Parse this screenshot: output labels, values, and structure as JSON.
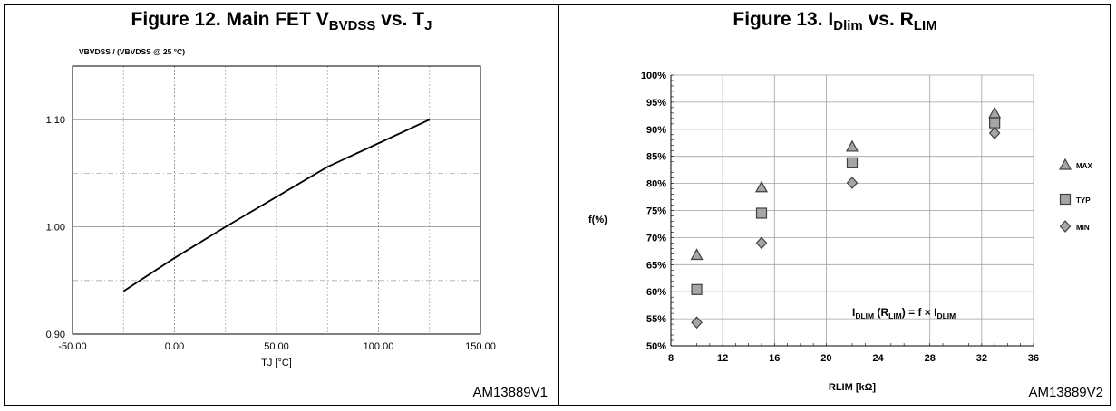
{
  "figure12": {
    "title_main": "Figure 12. Main FET V",
    "title_sub1": "BVDSS",
    "title_mid": " vs. T",
    "title_sub2": "J",
    "code": "AM13889V1",
    "chart_data": {
      "type": "line",
      "ylabel": "VBVDSS / (VBVDSS @ 25 °C)",
      "xlabel": "TJ [°C]",
      "xlim": [
        -50,
        150
      ],
      "ylim": [
        0.9,
        1.15
      ],
      "x_ticks": [
        -50,
        0,
        50,
        100,
        150
      ],
      "x_tick_labels": [
        "-50.00",
        "0.00",
        "50.00",
        "100.00",
        "150.00"
      ],
      "y_ticks": [
        0.9,
        1.0,
        1.1
      ],
      "y_tick_labels": [
        "0.90",
        "1.00",
        "1.10"
      ],
      "grid": true,
      "series": [
        {
          "x": [
            -25,
            0,
            25,
            50,
            75,
            100,
            125
          ],
          "y": [
            0.94,
            0.971,
            1.0,
            1.028,
            1.056,
            1.078,
            1.1
          ],
          "color": "#000000"
        }
      ]
    }
  },
  "figure13": {
    "title_main": "Figure 13. I",
    "title_sub1": "Dlim",
    "title_mid": " vs. R",
    "title_sub2": "LIM",
    "code": "AM13889V2",
    "annotation": {
      "p1": "I",
      "s1": "DLIM",
      "p2": " (R",
      "s2": "LIM",
      "p3": ") = f × I",
      "s3": "DLIM"
    },
    "chart_data": {
      "type": "scatter",
      "ylabel": "f(%)",
      "xlabel": "RLIM [kΩ]",
      "xlim": [
        8,
        36
      ],
      "ylim": [
        50,
        100
      ],
      "x_ticks": [
        8,
        12,
        16,
        20,
        24,
        28,
        32,
        36
      ],
      "y_ticks": [
        50,
        55,
        60,
        65,
        70,
        75,
        80,
        85,
        90,
        95,
        100
      ],
      "y_tick_labels": [
        "50%",
        "55%",
        "60%",
        "65%",
        "70%",
        "75%",
        "80%",
        "85%",
        "90%",
        "95%",
        "100%"
      ],
      "grid": true,
      "legend_position": "right",
      "series": [
        {
          "name": "MAX",
          "marker": "triangle",
          "x": [
            10,
            15,
            22,
            33
          ],
          "y": [
            66.8,
            79.3,
            86.8,
            93
          ]
        },
        {
          "name": "TYP",
          "marker": "square",
          "x": [
            10,
            15,
            22,
            33
          ],
          "y": [
            60.4,
            74.5,
            83.8,
            91.2
          ]
        },
        {
          "name": "MIN",
          "marker": "diamond",
          "x": [
            10,
            15,
            22,
            33
          ],
          "y": [
            54.3,
            69,
            80.1,
            89.3
          ]
        }
      ]
    }
  },
  "colors": {
    "marker_fill": "#a6a6a6",
    "marker_stroke": "#404040",
    "grid": "#a0a0a0"
  }
}
